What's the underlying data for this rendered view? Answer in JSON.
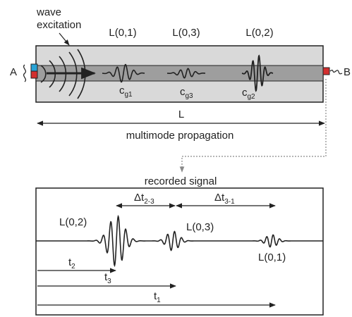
{
  "top": {
    "excitation_label_line1": "wave",
    "excitation_label_line2": "excitation",
    "end_a": "A",
    "end_b": "B",
    "mode_labels": [
      "L(0,1)",
      "L(0,3)",
      "L(0,2)"
    ],
    "group_velocity_base": "c",
    "group_velocity_subs": [
      "g1",
      "g3",
      "g2"
    ],
    "length_label": "L",
    "propagation_label": "multimode propagation"
  },
  "bottom": {
    "title": "recorded signal",
    "packet_labels": [
      "L(0,2)",
      "L(0,3)",
      "L(0,1)"
    ],
    "delta_base": "Δt",
    "delta_subs": [
      "2-3",
      "3-1"
    ],
    "time_base": "t",
    "time_subs": [
      "2",
      "3",
      "1"
    ]
  },
  "colors": {
    "ink": "#222222",
    "bar_outer": "#d9d9d9",
    "bar_core": "#9e9e9e",
    "sensor_red": "#d32f2f",
    "sensor_blue": "#29a3d6",
    "dotted": "#8a8a8a"
  }
}
